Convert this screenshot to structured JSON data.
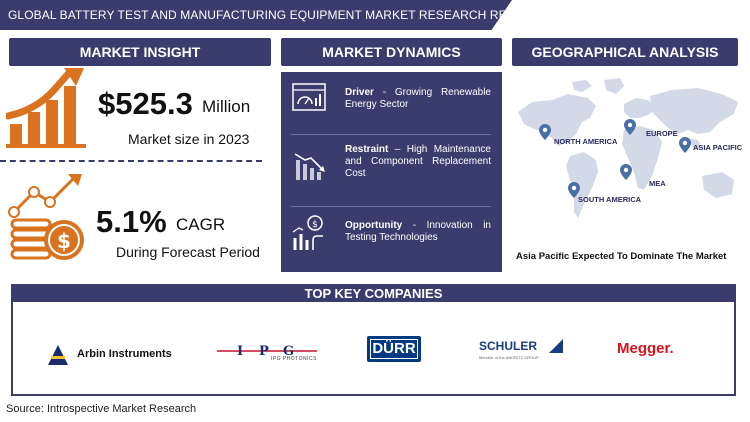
{
  "title": "GLOBAL BATTERY TEST AND MANUFACTURING EQUIPMENT MARKET RESEARCH REPORT",
  "sections": {
    "insight": "MARKET INSIGHT",
    "dynamics": "MARKET DYNAMICS",
    "geo": "GEOGRAPHICAL ANALYSIS",
    "companies": "TOP KEY COMPANIES"
  },
  "insight": {
    "market_value": "$525.3",
    "market_unit": "Million",
    "market_caption": "Market size in 2023",
    "cagr_value": "5.1%",
    "cagr_unit": "CAGR",
    "cagr_caption": "During Forecast Period"
  },
  "dynamics": [
    {
      "label": "Driver",
      "sep": " - ",
      "text": "Growing Renewable Energy Sector",
      "icon": "dashboard-chart-icon"
    },
    {
      "label": "Restraint",
      "sep": " – ",
      "text": "High Maintenance and Component Replacement Cost",
      "icon": "declining-chart-icon"
    },
    {
      "label": "Opportunity",
      "sep": " - ",
      "text": "Innovation in Testing Technologies",
      "icon": "growth-coin-icon"
    }
  ],
  "geo": {
    "regions": [
      "NORTH AMERICA",
      "EUROPE",
      "ASIA PACIFIC",
      "SOUTH AMERICA",
      "MEA"
    ],
    "caption": "Asia Pacific Expected To Dominate The Market",
    "pin_color": "#4a6fa5"
  },
  "companies": [
    {
      "name": "Arbin Instruments"
    },
    {
      "name": "IPG PHOTONICS"
    },
    {
      "name": "DÜRR"
    },
    {
      "name": "SCHULER",
      "sub": "Member of the ANDRITZ GROUP"
    },
    {
      "name": "Megger."
    }
  ],
  "colors": {
    "navy": "#3b3c6e",
    "orange": "#d9731f",
    "megger_red": "#d4151c",
    "durr_blue": "#003a80"
  },
  "source": "Source: Introspective Market Research"
}
